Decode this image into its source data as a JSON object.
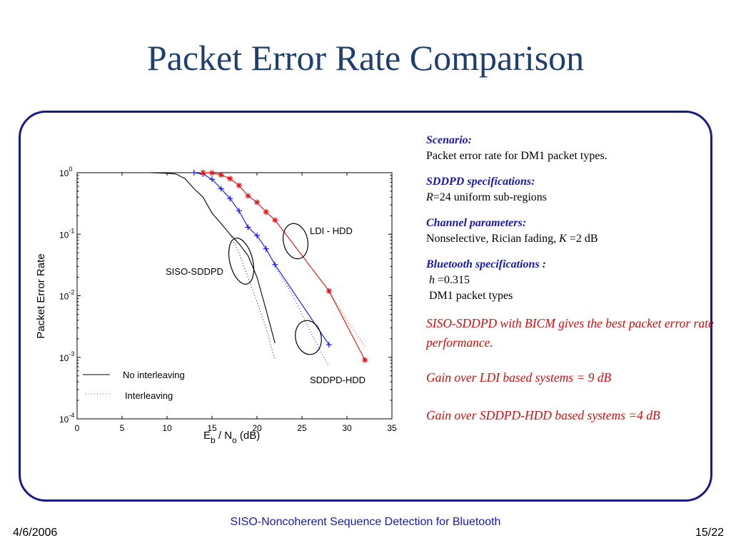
{
  "slide": {
    "title": "Packet Error Rate Comparison",
    "footer_center": "SISO-Noncoherent Sequence  Detection for Bluetooth",
    "footer_date": "4/6/2006",
    "footer_page": "15/22"
  },
  "notes": {
    "scenario_head": "Scenario:",
    "scenario_text": "Packet error rate for DM1 packet types.",
    "sddpd_head": "SDDPD specifications:",
    "sddpd_r": "R",
    "sddpd_text": "=24 uniform sub-regions",
    "channel_head": "Channel parameters:",
    "channel_text_a": "Nonselective, Rician fading, ",
    "channel_k": "K",
    "channel_text_b": " =2 dB",
    "bt_head": "Bluetooth specifications :",
    "bt_h": "h",
    "bt_h_val": " =0.315",
    "bt_dm1": "DM1 packet types",
    "claim1": "SISO-SDDPD with BICM gives the best packet error rate performance.",
    "claim2": "Gain over LDI based systems = 9 dB",
    "claim3": "Gain over SDDPD-HDD based systems =4 dB"
  },
  "chart_data": {
    "type": "line",
    "ylabel": "Packet Error Rate",
    "xlabel_parts": [
      "E",
      "b",
      " / N",
      "o",
      "  (dB)"
    ],
    "xlim": [
      0,
      35
    ],
    "ylim_exp": [
      -4,
      0
    ],
    "yscale": "log",
    "x_ticks": [
      "0",
      "5",
      "10",
      "15",
      "20",
      "25",
      "30",
      "35"
    ],
    "y_tick_base": "10",
    "y_tick_exps": [
      "0",
      "-1",
      "-2",
      "-3",
      "-4"
    ],
    "legend": [
      {
        "label": "No interleaving",
        "style": "solid"
      },
      {
        "label": "Interleaving",
        "style": "dotted"
      }
    ],
    "annotations": [
      {
        "text": "LDI - HDD"
      },
      {
        "text": "SISO-SDDPD"
      },
      {
        "text": "SDDPD-HDD"
      }
    ],
    "series": [
      {
        "color": "#000000",
        "style": "solid",
        "x": [
          0,
          8,
          10,
          11,
          12,
          13,
          14,
          15,
          16,
          17,
          18,
          19,
          19.5,
          20,
          21,
          22
        ],
        "y": [
          1.0,
          1.0,
          0.98,
          0.95,
          0.8,
          0.55,
          0.4,
          0.22,
          0.15,
          0.1,
          0.07,
          0.045,
          0.03,
          0.02,
          0.006,
          0.0017
        ]
      },
      {
        "color": "#000000",
        "style": "dotted",
        "x": [
          17,
          18,
          19,
          20,
          21,
          22
        ],
        "y": [
          0.1,
          0.05,
          0.02,
          0.008,
          0.003,
          0.0009
        ]
      },
      {
        "color": "#1010ff",
        "style": "solid",
        "marker": "+",
        "x": [
          13,
          14,
          15,
          16,
          17,
          18,
          19,
          20,
          21,
          22,
          28
        ],
        "y": [
          1.0,
          0.95,
          0.78,
          0.55,
          0.38,
          0.24,
          0.13,
          0.095,
          0.058,
          0.032,
          0.0016
        ]
      },
      {
        "color": "#1010ff",
        "style": "dotted",
        "x": [
          22,
          24,
          26,
          28
        ],
        "y": [
          0.03,
          0.01,
          0.0025,
          0.0007
        ]
      },
      {
        "color": "#e01010",
        "style": "solid",
        "marker": "*",
        "x": [
          14,
          15,
          16,
          17,
          18,
          19,
          20,
          21,
          22,
          28,
          32
        ],
        "y": [
          1.0,
          0.99,
          0.92,
          0.8,
          0.62,
          0.42,
          0.33,
          0.23,
          0.17,
          0.012,
          0.0009
        ]
      },
      {
        "color": "#e01010",
        "style": "dotted",
        "x": [
          28,
          30,
          32
        ],
        "y": [
          0.012,
          0.004,
          0.0015
        ]
      }
    ]
  }
}
